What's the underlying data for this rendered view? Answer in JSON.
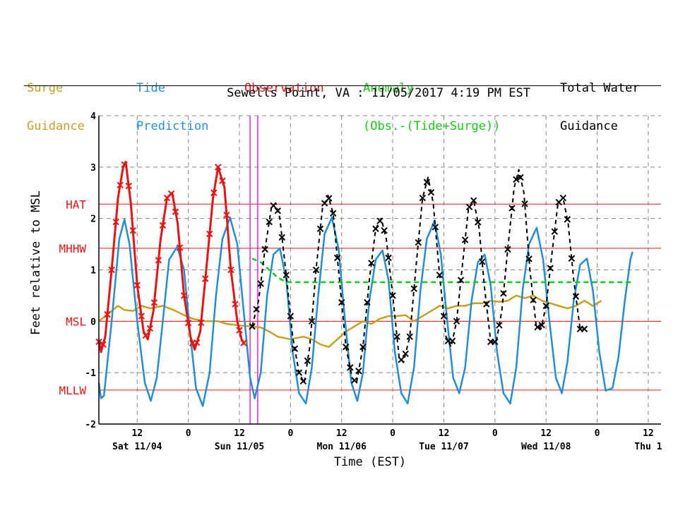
{
  "legend": {
    "surge": [
      "Surge",
      "Guidance"
    ],
    "tide": [
      "Tide",
      "Prediction"
    ],
    "obs": [
      "Observation"
    ],
    "anomaly": [
      "Anomaly",
      "(Obs.-(Tide+Surge))"
    ],
    "total": [
      "Total Water",
      "Guidance"
    ]
  },
  "title": "Sewells Point, VA : 11/05/2017 4:19 PM EST",
  "colors": {
    "surge": "#c8a020",
    "tide": "#1e90d8",
    "obs": "#ee1111",
    "anomaly": "#11cc11",
    "total": "#000000",
    "datum": "#ee1111",
    "marker": "#ee00ee",
    "grid": "#888888"
  },
  "chart_data": {
    "type": "line",
    "ylabel": "Feet relative to MSL",
    "xlabel": "Time (EST)",
    "ylim": [
      -2,
      4
    ],
    "xlim_hours": [
      0,
      132
    ],
    "x_time_origin": "11/04 03:00",
    "yticks": [
      -2,
      -1,
      0,
      1,
      2,
      3,
      4
    ],
    "ytick_labels": [
      "-2",
      "-1",
      "0",
      "1",
      "2",
      "3",
      "4"
    ],
    "xticks_hours": [
      9,
      21,
      33,
      45,
      57,
      69,
      81,
      93,
      105,
      117,
      129
    ],
    "xtick_labels": [
      "12",
      "0",
      "12",
      "0",
      "12",
      "0",
      "12",
      "0",
      "12",
      "0",
      "12"
    ],
    "day_labels": [
      {
        "hour": 9,
        "label": "Sat 11/04"
      },
      {
        "hour": 33,
        "label": "Sun 11/05"
      },
      {
        "hour": 57,
        "label": "Mon 11/06"
      },
      {
        "hour": 81,
        "label": "Tue 11/07"
      },
      {
        "hour": 105,
        "label": "Wed 11/08"
      },
      {
        "hour": 129,
        "label": "Thu 1"
      }
    ],
    "datums": [
      {
        "label": "HAT",
        "value": 2.28
      },
      {
        "label": "MHHW",
        "value": 1.42
      },
      {
        "label": "MSL",
        "value": 0.0
      },
      {
        "label": "MLLW",
        "value": -1.34
      }
    ],
    "marker_lines_hours": [
      35.5,
      37.3
    ],
    "series": [
      {
        "name": "Tide Prediction",
        "key": "tide",
        "points": [
          [
            0,
            -1.2
          ],
          [
            0.5,
            -1.5
          ],
          [
            1.2,
            -1.45
          ],
          [
            3.0,
            0.0
          ],
          [
            4.8,
            1.6
          ],
          [
            6.0,
            1.98
          ],
          [
            7.2,
            1.5
          ],
          [
            9.0,
            0.0
          ],
          [
            10.8,
            -1.2
          ],
          [
            12.2,
            -1.55
          ],
          [
            13.6,
            -1.1
          ],
          [
            15.0,
            0.0
          ],
          [
            16.5,
            1.2
          ],
          [
            18.4,
            1.45
          ],
          [
            20.0,
            1.0
          ],
          [
            21.5,
            -0.3
          ],
          [
            22.8,
            -1.3
          ],
          [
            24.4,
            -1.65
          ],
          [
            26.0,
            -1.0
          ],
          [
            27.5,
            0.5
          ],
          [
            29.0,
            1.6
          ],
          [
            30.8,
            2.02
          ],
          [
            32.5,
            1.5
          ],
          [
            34.0,
            0.2
          ],
          [
            35.5,
            -1.1
          ],
          [
            36.6,
            -1.5
          ],
          [
            38.0,
            -1.0
          ],
          [
            39.5,
            0.5
          ],
          [
            41.0,
            1.3
          ],
          [
            42.5,
            1.42
          ],
          [
            44.0,
            0.8
          ],
          [
            45.5,
            -0.6
          ],
          [
            47.0,
            -1.4
          ],
          [
            48.6,
            -1.6
          ],
          [
            50.0,
            -0.9
          ],
          [
            51.5,
            0.5
          ],
          [
            53.0,
            1.7
          ],
          [
            54.7,
            2.02
          ],
          [
            56.3,
            1.4
          ],
          [
            57.8,
            0.0
          ],
          [
            59.3,
            -1.2
          ],
          [
            60.7,
            -1.55
          ],
          [
            62.0,
            -1.0
          ],
          [
            63.5,
            0.4
          ],
          [
            65.0,
            1.2
          ],
          [
            66.6,
            1.38
          ],
          [
            68.0,
            0.8
          ],
          [
            69.5,
            -0.6
          ],
          [
            71.0,
            -1.4
          ],
          [
            72.5,
            -1.6
          ],
          [
            74.0,
            -0.9
          ],
          [
            75.5,
            0.6
          ],
          [
            77.0,
            1.6
          ],
          [
            78.8,
            1.95
          ],
          [
            80.3,
            1.3
          ],
          [
            81.8,
            0.0
          ],
          [
            83.2,
            -1.1
          ],
          [
            84.6,
            -1.4
          ],
          [
            86.0,
            -0.9
          ],
          [
            87.5,
            0.4
          ],
          [
            89.0,
            1.15
          ],
          [
            90.6,
            1.3
          ],
          [
            92.0,
            0.7
          ],
          [
            93.5,
            -0.6
          ],
          [
            95.0,
            -1.4
          ],
          [
            96.6,
            -1.6
          ],
          [
            98.0,
            -0.9
          ],
          [
            99.5,
            0.6
          ],
          [
            101.0,
            1.5
          ],
          [
            102.8,
            1.82
          ],
          [
            104.3,
            1.2
          ],
          [
            105.8,
            0.0
          ],
          [
            107.3,
            -1.1
          ],
          [
            108.7,
            -1.4
          ],
          [
            110.0,
            -0.8
          ],
          [
            111.5,
            0.4
          ],
          [
            113.0,
            1.1
          ],
          [
            114.6,
            1.22
          ],
          [
            116.0,
            0.6
          ],
          [
            117.5,
            -0.6
          ],
          [
            119.0,
            -1.35
          ],
          [
            120.6,
            -1.3
          ],
          [
            122.0,
            -0.7
          ],
          [
            123.5,
            0.4
          ],
          [
            124.8,
            1.2
          ],
          [
            125.3,
            1.35
          ]
        ]
      },
      {
        "name": "Observation",
        "key": "obs",
        "points": [
          [
            0,
            -0.4
          ],
          [
            0.5,
            -0.6
          ],
          [
            1.5,
            -0.3
          ],
          [
            3.0,
            1.0
          ],
          [
            4.5,
            2.4
          ],
          [
            5.7,
            3.0
          ],
          [
            6.3,
            3.1
          ],
          [
            7.5,
            2.3
          ],
          [
            9.0,
            0.7
          ],
          [
            10.5,
            -0.2
          ],
          [
            11.5,
            -0.35
          ],
          [
            12.8,
            0.2
          ],
          [
            14.5,
            1.6
          ],
          [
            16.0,
            2.4
          ],
          [
            17.2,
            2.5
          ],
          [
            18.5,
            1.9
          ],
          [
            20.0,
            0.5
          ],
          [
            21.5,
            -0.3
          ],
          [
            22.5,
            -0.55
          ],
          [
            23.8,
            -0.2
          ],
          [
            25.2,
            1.0
          ],
          [
            26.8,
            2.4
          ],
          [
            28.0,
            3.0
          ],
          [
            29.5,
            2.6
          ],
          [
            31.0,
            1.0
          ],
          [
            32.5,
            0.0
          ],
          [
            33.5,
            -0.35
          ],
          [
            34.2,
            -0.45
          ]
        ]
      },
      {
        "name": "Surge Guidance",
        "key": "surge",
        "points": [
          [
            0,
            0.0
          ],
          [
            1.5,
            0.1
          ],
          [
            3.0,
            0.2
          ],
          [
            4.5,
            0.3
          ],
          [
            6.0,
            0.22
          ],
          [
            8.0,
            0.2
          ],
          [
            10.0,
            0.3
          ],
          [
            12.0,
            0.25
          ],
          [
            15.0,
            0.3
          ],
          [
            17.5,
            0.22
          ],
          [
            20.0,
            0.12
          ],
          [
            22.0,
            0.05
          ],
          [
            25.0,
            0.0
          ],
          [
            28.0,
            0.0
          ],
          [
            30.0,
            -0.05
          ],
          [
            33.0,
            -0.08
          ],
          [
            36.0,
            -0.1
          ],
          [
            38.0,
            -0.12
          ],
          [
            40.0,
            -0.2
          ],
          [
            42.0,
            -0.3
          ],
          [
            45.0,
            -0.35
          ],
          [
            48.0,
            -0.3
          ],
          [
            50.0,
            -0.35
          ],
          [
            52.0,
            -0.45
          ],
          [
            54.0,
            -0.5
          ],
          [
            56.0,
            -0.35
          ],
          [
            58.0,
            -0.2
          ],
          [
            60.0,
            -0.1
          ],
          [
            62.0,
            0.0
          ],
          [
            64.0,
            -0.05
          ],
          [
            66.0,
            0.05
          ],
          [
            68.0,
            0.1
          ],
          [
            70.0,
            0.1
          ],
          [
            72.0,
            0.12
          ],
          [
            74.0,
            0.0
          ],
          [
            76.0,
            0.1
          ],
          [
            78.0,
            0.2
          ],
          [
            80.0,
            0.3
          ],
          [
            82.0,
            0.25
          ],
          [
            84.0,
            0.3
          ],
          [
            86.0,
            0.3
          ],
          [
            88.0,
            0.35
          ],
          [
            90.0,
            0.35
          ],
          [
            92.0,
            0.4
          ],
          [
            94.0,
            0.38
          ],
          [
            96.0,
            0.4
          ],
          [
            98.0,
            0.5
          ],
          [
            100.0,
            0.45
          ],
          [
            102.0,
            0.5
          ],
          [
            104.0,
            0.4
          ],
          [
            106.0,
            0.35
          ],
          [
            108.0,
            0.3
          ],
          [
            110.0,
            0.25
          ],
          [
            112.0,
            0.3
          ],
          [
            114.0,
            0.4
          ],
          [
            116.0,
            0.3
          ],
          [
            118.0,
            0.4
          ]
        ]
      },
      {
        "name": "Anomaly",
        "key": "anomaly",
        "points": [
          [
            36.0,
            1.22
          ],
          [
            38.0,
            1.15
          ],
          [
            40.0,
            1.0
          ],
          [
            42.0,
            0.85
          ],
          [
            43.5,
            0.78
          ],
          [
            45.0,
            0.76
          ],
          [
            50.0,
            0.76
          ],
          [
            60.0,
            0.76
          ],
          [
            80.0,
            0.76
          ],
          [
            100.0,
            0.76
          ],
          [
            120.0,
            0.76
          ],
          [
            125.3,
            0.76
          ]
        ]
      },
      {
        "name": "Total Water Guidance",
        "key": "total",
        "points": [
          [
            36.0,
            -0.1
          ],
          [
            37.5,
            0.4
          ],
          [
            39.0,
            1.4
          ],
          [
            40.5,
            2.2
          ],
          [
            41.5,
            2.3
          ],
          [
            42.5,
            2.0
          ],
          [
            44.0,
            0.9
          ],
          [
            45.5,
            -0.3
          ],
          [
            47.0,
            -1.0
          ],
          [
            48.2,
            -1.2
          ],
          [
            49.5,
            -0.5
          ],
          [
            51.0,
            1.0
          ],
          [
            52.5,
            2.2
          ],
          [
            53.8,
            2.45
          ],
          [
            55.0,
            2.1
          ],
          [
            56.5,
            0.8
          ],
          [
            58.0,
            -0.5
          ],
          [
            59.5,
            -1.1
          ],
          [
            60.5,
            -1.2
          ],
          [
            62.0,
            -0.5
          ],
          [
            63.5,
            0.8
          ],
          [
            65.0,
            1.8
          ],
          [
            66.3,
            2.0
          ],
          [
            67.5,
            1.6
          ],
          [
            69.0,
            0.5
          ],
          [
            70.5,
            -0.7
          ],
          [
            71.5,
            -0.8
          ],
          [
            73.0,
            -0.3
          ],
          [
            74.5,
            1.1
          ],
          [
            76.0,
            2.4
          ],
          [
            77.3,
            2.8
          ],
          [
            78.5,
            2.3
          ],
          [
            80.0,
            0.9
          ],
          [
            81.5,
            -0.3
          ],
          [
            82.7,
            -0.5
          ],
          [
            84.0,
            0.0
          ],
          [
            85.5,
            1.2
          ],
          [
            86.8,
            2.2
          ],
          [
            88.0,
            2.35
          ],
          [
            89.3,
            1.8
          ],
          [
            90.5,
            0.7
          ],
          [
            92.0,
            -0.4
          ],
          [
            93.3,
            -0.4
          ],
          [
            94.6,
            0.2
          ],
          [
            96.0,
            1.4
          ],
          [
            97.5,
            2.6
          ],
          [
            98.6,
            2.95
          ],
          [
            99.8,
            2.5
          ],
          [
            101.2,
            1.0
          ],
          [
            102.7,
            -0.1
          ],
          [
            103.8,
            -0.15
          ],
          [
            105.0,
            0.3
          ],
          [
            106.5,
            1.4
          ],
          [
            107.8,
            2.3
          ],
          [
            109.0,
            2.4
          ],
          [
            110.2,
            1.9
          ],
          [
            111.5,
            0.8
          ],
          [
            113.0,
            -0.15
          ],
          [
            114.0,
            -0.15
          ]
        ]
      }
    ]
  }
}
